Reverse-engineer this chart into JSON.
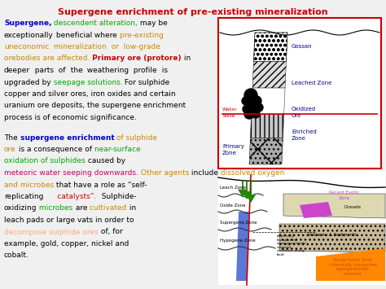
{
  "title": "Supergene enrichment of pre-existing mineralization",
  "title_color": "#cc0000",
  "bg_color": "#f0f0f0",
  "para1_lines": [
    [
      {
        "text": "Supergene,",
        "color": "#0000cc",
        "bold": true
      },
      {
        "text": " descendent",
        "color": "#00aa00",
        "bold": false
      },
      {
        "text": " alteration,",
        "color": "#00aa00",
        "bold": false
      },
      {
        "text": " may be",
        "color": "#000000",
        "bold": false
      }
    ],
    [
      {
        "text": "exceptionally",
        "color": "#000000",
        "bold": false
      },
      {
        "text": " beneficial",
        "color": "#000000",
        "bold": false
      },
      {
        "text": " where",
        "color": "#000000",
        "bold": false
      },
      {
        "text": " pre-existing",
        "color": "#cc8800",
        "bold": false
      }
    ],
    [
      {
        "text": "uneconomic",
        "color": "#cc8800",
        "bold": false
      },
      {
        "text": "  mineralization",
        "color": "#cc8800",
        "bold": false
      },
      {
        "text": "  or",
        "color": "#cc8800",
        "bold": false
      },
      {
        "text": "  low-grade",
        "color": "#cc8800",
        "bold": false
      }
    ],
    [
      {
        "text": "orebodies are affected.",
        "color": "#cc8800",
        "bold": false
      },
      {
        "text": " Primary ore (protore)",
        "color": "#cc0000",
        "bold": true
      },
      {
        "text": " in",
        "color": "#000000",
        "bold": false
      }
    ],
    [
      {
        "text": "deeper",
        "color": "#000000",
        "bold": false
      },
      {
        "text": "  parts",
        "color": "#000000",
        "bold": false
      },
      {
        "text": "  of",
        "color": "#000000",
        "bold": false
      },
      {
        "text": "  the",
        "color": "#000000",
        "bold": false
      },
      {
        "text": "  weathering",
        "color": "#000000",
        "bold": false
      },
      {
        "text": "  profile",
        "color": "#000000",
        "bold": false
      },
      {
        "text": "  is",
        "color": "#000000",
        "bold": false
      }
    ],
    [
      {
        "text": "upgraded by",
        "color": "#000000",
        "bold": false
      },
      {
        "text": " seepage solutions.",
        "color": "#00aa00",
        "bold": false
      },
      {
        "text": " For sulphide",
        "color": "#000000",
        "bold": false
      }
    ],
    [
      {
        "text": "copper and silver ores, iron oxides and certain",
        "color": "#000000",
        "bold": false
      }
    ],
    [
      {
        "text": "uranium ore deposits, the supergene enrichment",
        "color": "#000000",
        "bold": false
      }
    ],
    [
      {
        "text": "process is of economic significance.",
        "color": "#000000",
        "bold": false
      }
    ]
  ],
  "para2_lines": [
    [
      {
        "text": "The",
        "color": "#000000",
        "bold": false
      },
      {
        "text": " supergene enrichment",
        "color": "#0000cc",
        "bold": true
      },
      {
        "text": " of sulphide",
        "color": "#cc8800",
        "bold": false
      }
    ],
    [
      {
        "text": "ore",
        "color": "#cc8800",
        "bold": false
      },
      {
        "text": " is a consequence of",
        "color": "#000000",
        "bold": false
      },
      {
        "text": " near-surface",
        "color": "#00aa00",
        "bold": false
      }
    ],
    [
      {
        "text": "oxidation of sulphides",
        "color": "#00aa00",
        "bold": false
      },
      {
        "text": " caused by",
        "color": "#000000",
        "bold": false
      }
    ],
    [
      {
        "text": "meteoric water seeping downwards.",
        "color": "#cc0066",
        "bold": false
      },
      {
        "text": " Other agents",
        "color": "#cc8800",
        "bold": false
      },
      {
        "text": " include",
        "color": "#000000",
        "bold": false
      },
      {
        "text": " dissolved oxygen",
        "color": "#cc8800",
        "bold": false
      }
    ],
    [
      {
        "text": "and microbes",
        "color": "#cc8800",
        "bold": false
      },
      {
        "text": " that have a role as “self-",
        "color": "#000000",
        "bold": false
      }
    ],
    [
      {
        "text": "replicating",
        "color": "#000000",
        "bold": false
      },
      {
        "text": "      catalysts”.",
        "color": "#cc0000",
        "bold": false
      },
      {
        "text": "  Sulphide-",
        "color": "#000000",
        "bold": false
      }
    ],
    [
      {
        "text": "oxidizing",
        "color": "#000000",
        "bold": false
      },
      {
        "text": " microbes",
        "color": "#00aa00",
        "bold": false
      },
      {
        "text": " are",
        "color": "#000000",
        "bold": false
      },
      {
        "text": " cultivated",
        "color": "#cc8800",
        "bold": false
      },
      {
        "text": " in",
        "color": "#000000",
        "bold": false
      }
    ],
    [
      {
        "text": "leach pads or large vats in order to",
        "color": "#000000",
        "bold": false
      }
    ],
    [
      {
        "text": "decompose sulphide ores",
        "color": "#ffaa77",
        "bold": false
      },
      {
        "text": " of, for",
        "color": "#000000",
        "bold": false
      }
    ],
    [
      {
        "text": "example, gold, copper, nickel and",
        "color": "#000000",
        "bold": false
      }
    ],
    [
      {
        "text": "cobalt.",
        "color": "#000000",
        "bold": false
      }
    ]
  ]
}
